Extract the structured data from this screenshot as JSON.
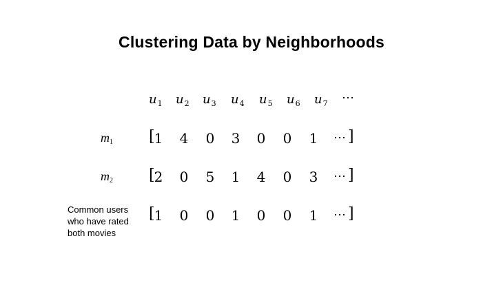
{
  "title": "Clustering Data by Neighborhoods",
  "columns": [
    {
      "base": "u",
      "sub": "1"
    },
    {
      "base": "u",
      "sub": "2"
    },
    {
      "base": "u",
      "sub": "3"
    },
    {
      "base": "u",
      "sub": "4"
    },
    {
      "base": "u",
      "sub": "5"
    },
    {
      "base": "u",
      "sub": "6"
    },
    {
      "base": "u",
      "sub": "7"
    }
  ],
  "header_ellipsis": "⋯",
  "rows": [
    {
      "label_base": "m",
      "label_sub": "1",
      "values": [
        "1",
        "4",
        "0",
        "3",
        "0",
        "0",
        "1"
      ],
      "open": "[",
      "ellipsis": "⋯",
      "close": "]"
    },
    {
      "label_base": "m",
      "label_sub": "2",
      "values": [
        "2",
        "0",
        "5",
        "1",
        "4",
        "0",
        "3"
      ],
      "open": "[",
      "ellipsis": "⋯",
      "close": "]"
    },
    {
      "label_lines": [
        "Common users",
        "who have rated",
        "both movies"
      ],
      "values": [
        "1",
        "0",
        "0",
        "1",
        "0",
        "0",
        "1"
      ],
      "open": "[",
      "ellipsis": "⋯",
      "close": "]"
    }
  ]
}
